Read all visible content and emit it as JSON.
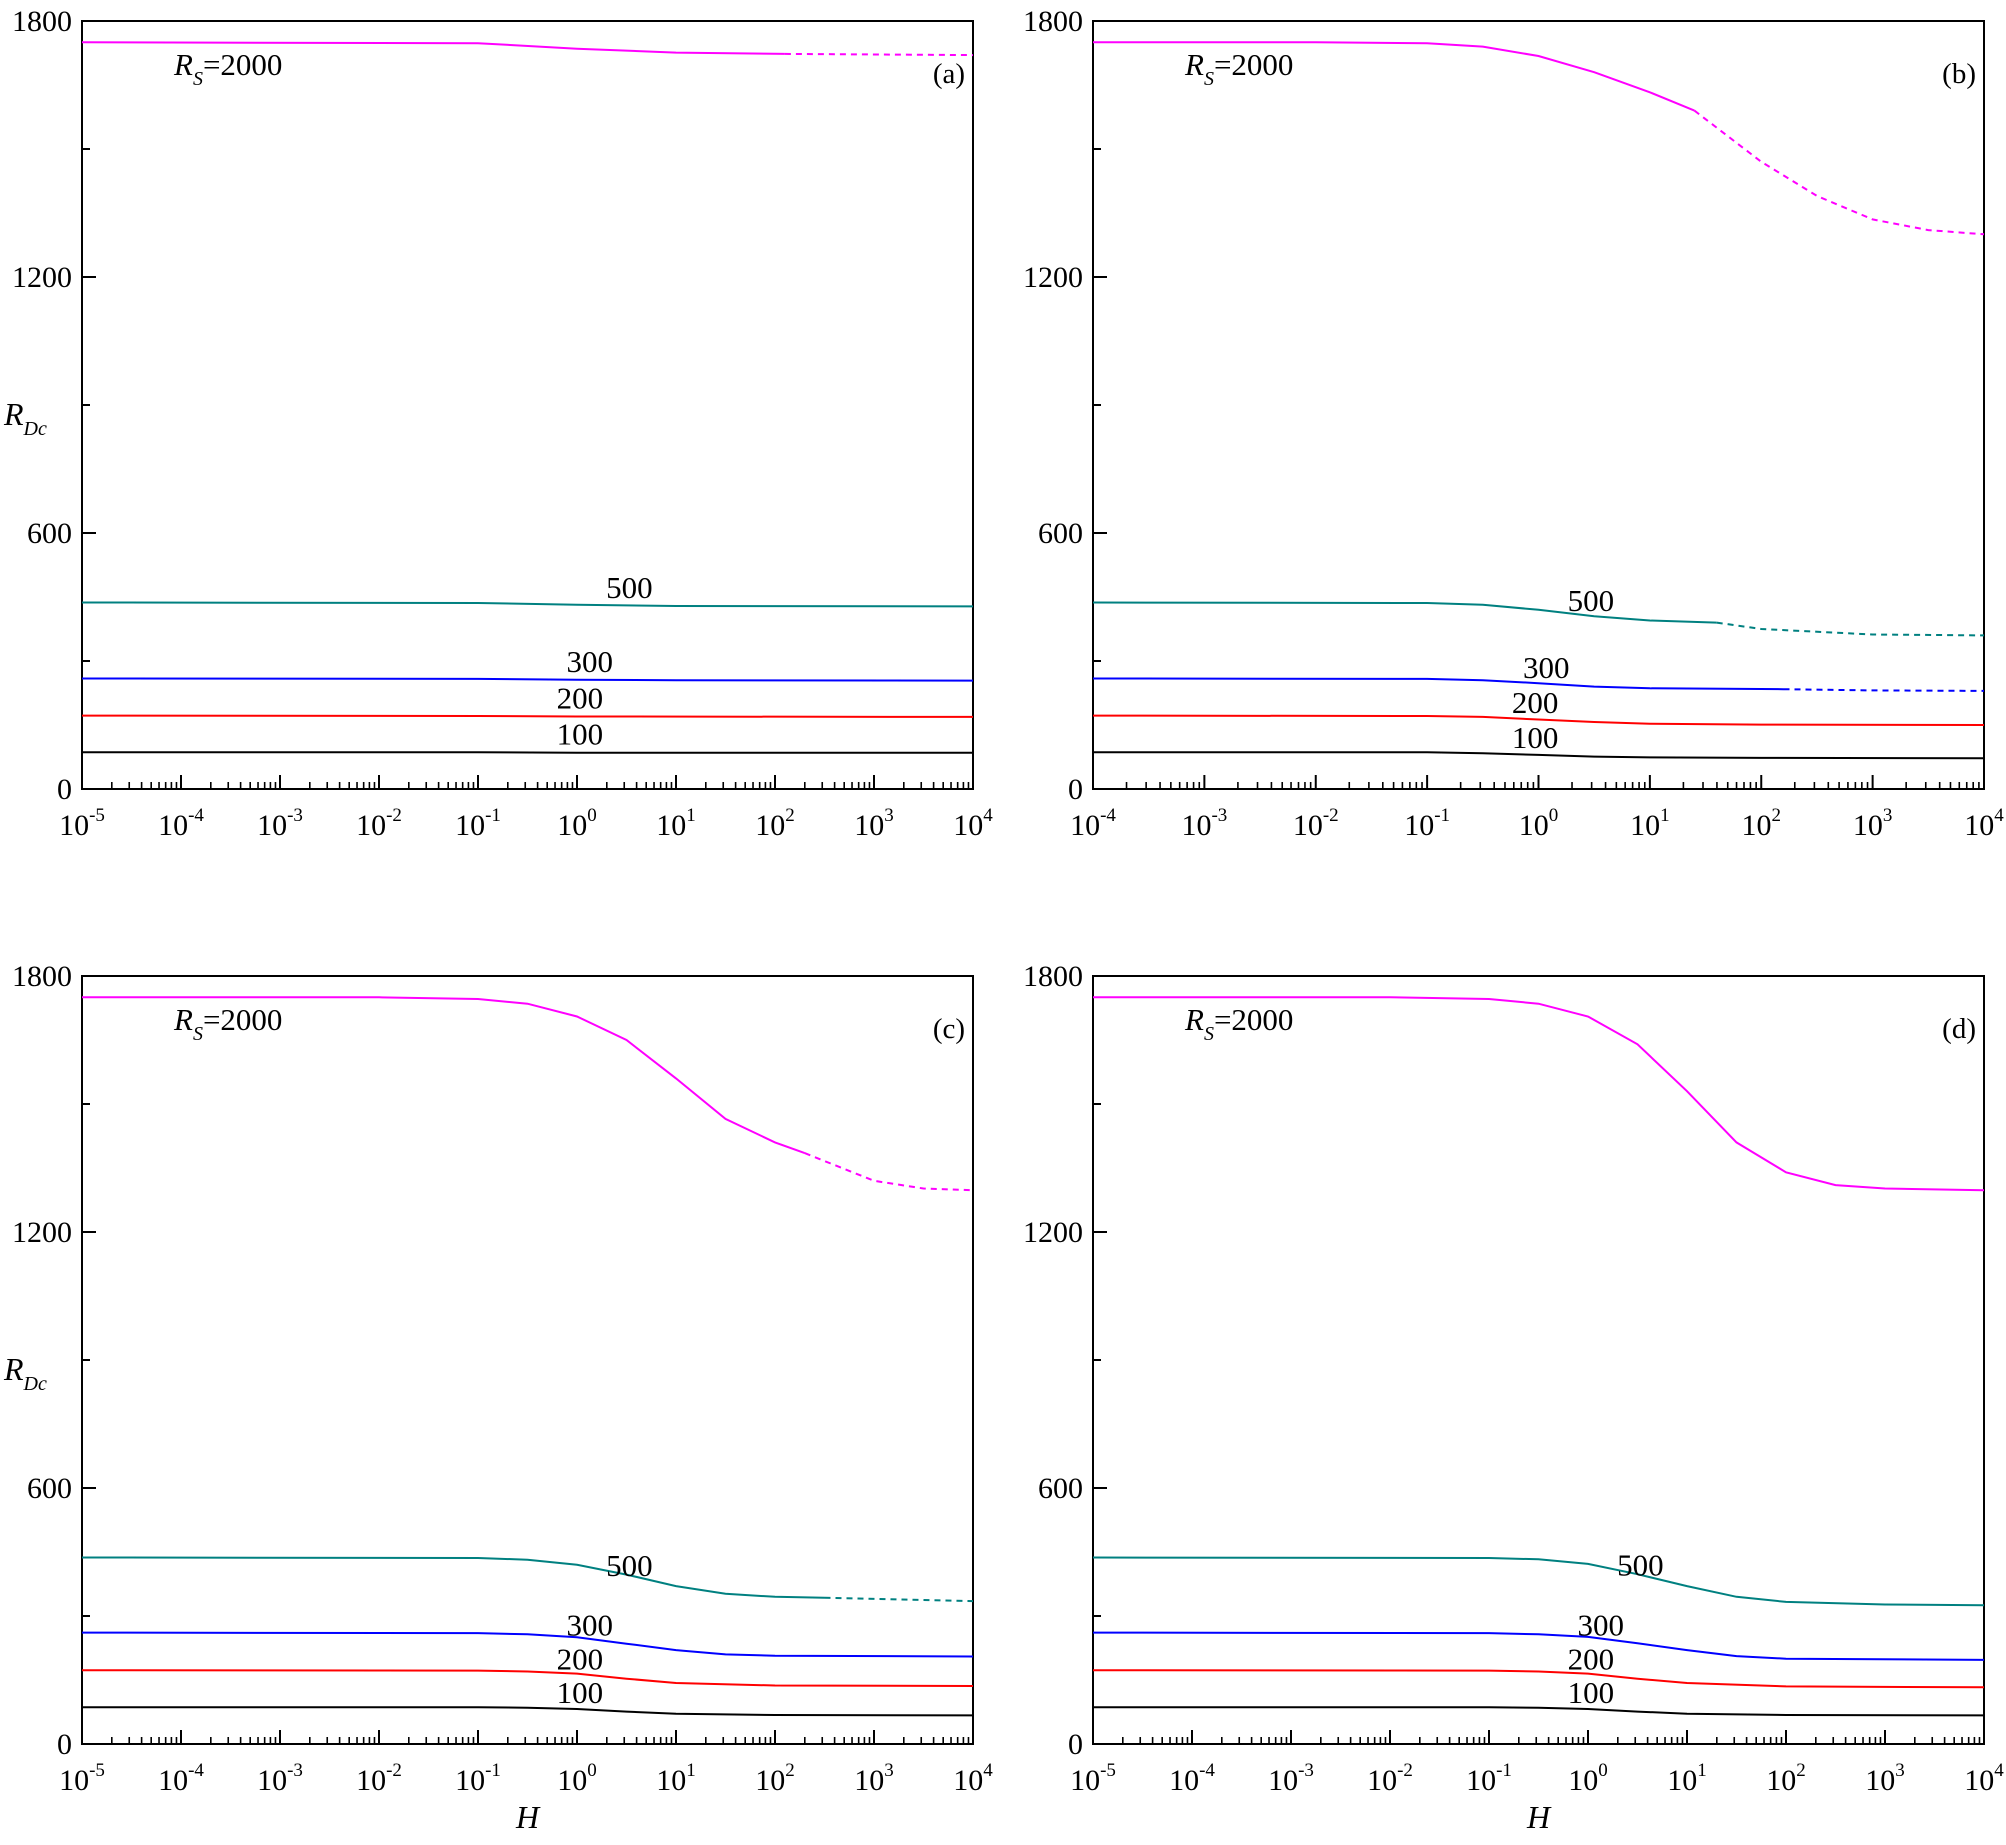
{
  "chart_data": [
    {
      "type": "line",
      "panel_label": "(a)",
      "xscale": "log",
      "xlim": [
        1e-05,
        10000.0
      ],
      "ylim": [
        0,
        1800
      ],
      "yticks": [
        0,
        600,
        1200,
        1800
      ],
      "xticks_exp": [
        -5,
        -4,
        -3,
        -2,
        -1,
        0,
        1,
        2,
        3,
        4
      ],
      "xlabel": "",
      "ylabel": "R_Dc",
      "series": [
        {
          "label": "R_S=2000",
          "label_pos": "left",
          "color": "#ff00ff",
          "solid": [
            [
              -5,
              1750
            ],
            [
              -1,
              1748
            ],
            [
              0,
              1735
            ],
            [
              1,
              1726
            ],
            [
              2.1,
              1723
            ]
          ],
          "dashed": [
            [
              2.1,
              1723
            ],
            [
              4,
              1720
            ]
          ]
        },
        {
          "label": "500",
          "color": "#008080",
          "solid": [
            [
              -5,
              437
            ],
            [
              -1,
              436
            ],
            [
              0,
              432
            ],
            [
              1,
              429
            ],
            [
              4,
              428
            ]
          ],
          "dashed": []
        },
        {
          "label": "300",
          "color": "#0000ff",
          "solid": [
            [
              -5,
              259
            ],
            [
              -1,
              258
            ],
            [
              0,
              256
            ],
            [
              1,
              255
            ],
            [
              4,
              254
            ]
          ],
          "dashed": []
        },
        {
          "label": "200",
          "color": "#ff0000",
          "solid": [
            [
              -5,
              172
            ],
            [
              -1,
              171
            ],
            [
              0,
              170
            ],
            [
              4,
              169
            ]
          ],
          "dashed": []
        },
        {
          "label": "100",
          "color": "#000000",
          "solid": [
            [
              -5,
              86
            ],
            [
              -1,
              86
            ],
            [
              0,
              85
            ],
            [
              4,
              85
            ]
          ],
          "dashed": []
        }
      ]
    },
    {
      "type": "line",
      "panel_label": "(b)",
      "xscale": "log",
      "xlim": [
        0.0001,
        10000.0
      ],
      "ylim": [
        0,
        1800
      ],
      "yticks": [
        0,
        600,
        1200,
        1800
      ],
      "xticks_exp": [
        -4,
        -3,
        -2,
        -1,
        0,
        1,
        2,
        3,
        4
      ],
      "xlabel": "",
      "ylabel": "",
      "series": [
        {
          "label": "R_S=2000",
          "label_pos": "left",
          "color": "#ff00ff",
          "solid": [
            [
              -4,
              1750
            ],
            [
              -2,
              1750
            ],
            [
              -1,
              1748
            ],
            [
              -0.5,
              1740
            ],
            [
              0,
              1718
            ],
            [
              0.5,
              1680
            ],
            [
              1,
              1633
            ],
            [
              1.4,
              1590
            ]
          ],
          "dashed": [
            [
              1.4,
              1590
            ],
            [
              2,
              1470
            ],
            [
              2.5,
              1390
            ],
            [
              3,
              1335
            ],
            [
              3.5,
              1310
            ],
            [
              4,
              1300
            ]
          ]
        },
        {
          "label": "500",
          "color": "#008080",
          "solid": [
            [
              -4,
              437
            ],
            [
              -1,
              436
            ],
            [
              -0.5,
              432
            ],
            [
              0,
              420
            ],
            [
              0.5,
              405
            ],
            [
              1,
              395
            ],
            [
              1.6,
              390
            ]
          ],
          "dashed": [
            [
              1.6,
              390
            ],
            [
              2,
              375
            ],
            [
              3,
              362
            ],
            [
              4,
              360
            ]
          ]
        },
        {
          "label": "300",
          "color": "#0000ff",
          "solid": [
            [
              -4,
              259
            ],
            [
              -1,
              258
            ],
            [
              -0.5,
              255
            ],
            [
              0,
              248
            ],
            [
              0.5,
              240
            ],
            [
              1,
              236
            ],
            [
              2.2,
              234
            ]
          ],
          "dashed": [
            [
              2.2,
              234
            ],
            [
              3,
              231
            ],
            [
              4,
              230
            ]
          ]
        },
        {
          "label": "200",
          "color": "#ff0000",
          "solid": [
            [
              -4,
              172
            ],
            [
              -1,
              171
            ],
            [
              -0.5,
              169
            ],
            [
              0,
              163
            ],
            [
              0.5,
              157
            ],
            [
              1,
              153
            ],
            [
              2,
              151
            ],
            [
              4,
              150
            ]
          ],
          "dashed": []
        },
        {
          "label": "100",
          "color": "#000000",
          "solid": [
            [
              -4,
              86
            ],
            [
              -1,
              86
            ],
            [
              -0.5,
              84
            ],
            [
              0,
              80
            ],
            [
              0.5,
              76
            ],
            [
              1,
              74
            ],
            [
              2,
              73
            ],
            [
              4,
              72
            ]
          ],
          "dashed": []
        }
      ]
    },
    {
      "type": "line",
      "panel_label": "(c)",
      "xscale": "log",
      "xlim": [
        1e-05,
        10000.0
      ],
      "ylim": [
        0,
        1800
      ],
      "yticks": [
        0,
        600,
        1200,
        1800
      ],
      "xticks_exp": [
        -5,
        -4,
        -3,
        -2,
        -1,
        0,
        1,
        2,
        3,
        4
      ],
      "xlabel": "H",
      "ylabel": "R_Dc",
      "series": [
        {
          "label": "R_S=2000",
          "label_pos": "left",
          "color": "#ff00ff",
          "solid": [
            [
              -5,
              1750
            ],
            [
              -2,
              1750
            ],
            [
              -1,
              1746
            ],
            [
              -0.5,
              1735
            ],
            [
              0,
              1705
            ],
            [
              0.5,
              1650
            ],
            [
              1,
              1560
            ],
            [
              1.5,
              1465
            ],
            [
              2,
              1410
            ],
            [
              2.3,
              1385
            ]
          ],
          "dashed": [
            [
              2.3,
              1385
            ],
            [
              3,
              1320
            ],
            [
              3.5,
              1302
            ],
            [
              4,
              1298
            ]
          ]
        },
        {
          "label": "500",
          "color": "#008080",
          "solid": [
            [
              -5,
              437
            ],
            [
              -1,
              436
            ],
            [
              -0.5,
              432
            ],
            [
              0,
              420
            ],
            [
              0.5,
              397
            ],
            [
              1,
              370
            ],
            [
              1.5,
              352
            ],
            [
              2,
              345
            ],
            [
              2.5,
              343
            ]
          ],
          "dashed": [
            [
              2.5,
              343
            ],
            [
              4,
              335
            ]
          ]
        },
        {
          "label": "300",
          "color": "#0000ff",
          "solid": [
            [
              -5,
              261
            ],
            [
              -1,
              260
            ],
            [
              -0.5,
              257
            ],
            [
              0,
              250
            ],
            [
              0.5,
              235
            ],
            [
              1,
              220
            ],
            [
              1.5,
              210
            ],
            [
              2,
              207
            ],
            [
              4,
              205
            ]
          ],
          "dashed": []
        },
        {
          "label": "200",
          "color": "#ff0000",
          "solid": [
            [
              -5,
              173
            ],
            [
              -1,
              172
            ],
            [
              -0.5,
              170
            ],
            [
              0,
              165
            ],
            [
              0.5,
              153
            ],
            [
              1,
              143
            ],
            [
              2,
              137
            ],
            [
              4,
              136
            ]
          ],
          "dashed": []
        },
        {
          "label": "100",
          "color": "#000000",
          "solid": [
            [
              -5,
              86
            ],
            [
              -1,
              86
            ],
            [
              -0.5,
              85
            ],
            [
              0,
              82
            ],
            [
              0.5,
              76
            ],
            [
              1,
              71
            ],
            [
              2,
              68
            ],
            [
              4,
              67
            ]
          ],
          "dashed": []
        }
      ]
    },
    {
      "type": "line",
      "panel_label": "(d)",
      "xscale": "log",
      "xlim": [
        1e-05,
        10000.0
      ],
      "ylim": [
        0,
        1800
      ],
      "yticks": [
        0,
        600,
        1200,
        1800
      ],
      "xticks_exp": [
        -5,
        -4,
        -3,
        -2,
        -1,
        0,
        1,
        2,
        3,
        4
      ],
      "xlabel": "H",
      "ylabel": "",
      "series": [
        {
          "label": "R_S=2000",
          "label_pos": "left",
          "color": "#ff00ff",
          "solid": [
            [
              -5,
              1750
            ],
            [
              -2,
              1750
            ],
            [
              -1,
              1746
            ],
            [
              -0.5,
              1735
            ],
            [
              0,
              1705
            ],
            [
              0.5,
              1640
            ],
            [
              1,
              1530
            ],
            [
              1.5,
              1410
            ],
            [
              2,
              1340
            ],
            [
              2.5,
              1310
            ],
            [
              3,
              1302
            ],
            [
              4,
              1298
            ]
          ],
          "dashed": []
        },
        {
          "label": "500",
          "color": "#008080",
          "solid": [
            [
              -5,
              437
            ],
            [
              -1,
              436
            ],
            [
              -0.5,
              433
            ],
            [
              0,
              422
            ],
            [
              0.5,
              398
            ],
            [
              1,
              370
            ],
            [
              1.5,
              345
            ],
            [
              2,
              333
            ],
            [
              3,
              327
            ],
            [
              4,
              325
            ]
          ],
          "dashed": []
        },
        {
          "label": "300",
          "color": "#0000ff",
          "solid": [
            [
              -5,
              261
            ],
            [
              -1,
              260
            ],
            [
              -0.5,
              257
            ],
            [
              0,
              251
            ],
            [
              0.5,
              236
            ],
            [
              1,
              220
            ],
            [
              1.5,
              206
            ],
            [
              2,
              200
            ],
            [
              4,
              197
            ]
          ],
          "dashed": []
        },
        {
          "label": "200",
          "color": "#ff0000",
          "solid": [
            [
              -5,
              173
            ],
            [
              -1,
              172
            ],
            [
              -0.5,
              170
            ],
            [
              0,
              165
            ],
            [
              0.5,
              153
            ],
            [
              1,
              143
            ],
            [
              2,
              135
            ],
            [
              4,
              133
            ]
          ],
          "dashed": []
        },
        {
          "label": "100",
          "color": "#000000",
          "solid": [
            [
              -5,
              86
            ],
            [
              -1,
              86
            ],
            [
              -0.5,
              85
            ],
            [
              0,
              82
            ],
            [
              0.5,
              76
            ],
            [
              1,
              71
            ],
            [
              2,
              68
            ],
            [
              4,
              67
            ]
          ],
          "dashed": []
        }
      ]
    }
  ]
}
